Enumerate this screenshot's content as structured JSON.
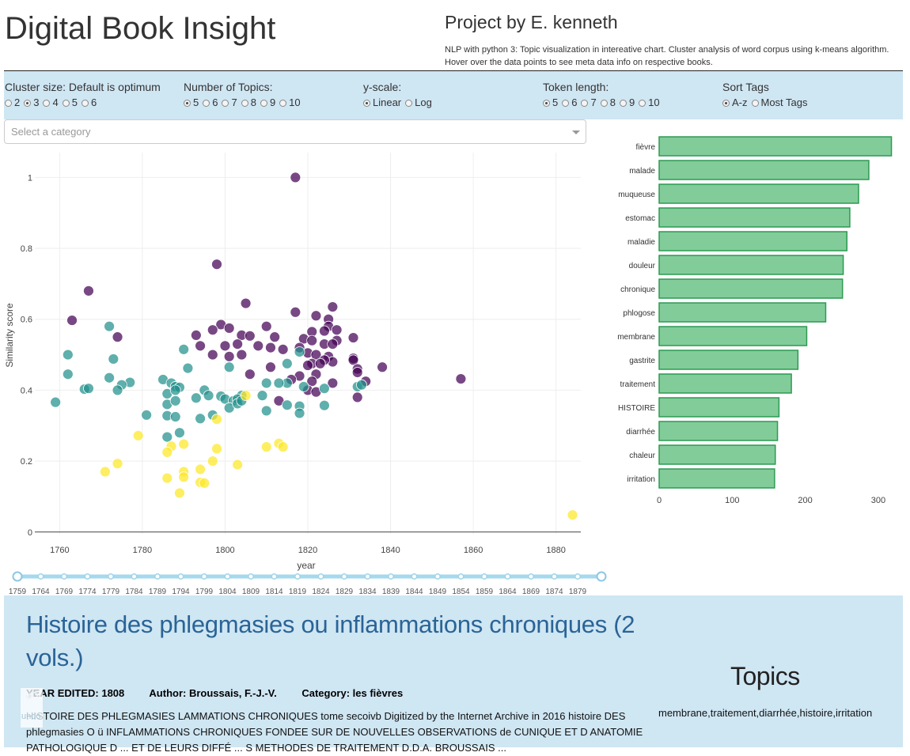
{
  "header": {
    "title": "Digital Book Insight",
    "project_by": "Project by E. kenneth",
    "description": "NLP with python 3: Topic visualization in intereative chart. Cluster analysis of word corpus using k-means algorithm. Hover over the data points to see meta data info on respective books."
  },
  "controls": {
    "cluster": {
      "label": "Cluster size: Default is optimum",
      "options": [
        "2",
        "3",
        "4",
        "5",
        "6"
      ],
      "selected": "3"
    },
    "topics": {
      "label": "Number of Topics:",
      "options": [
        "5",
        "6",
        "7",
        "8",
        "9",
        "10"
      ],
      "selected": "5"
    },
    "yscale": {
      "label": "y-scale:",
      "options": [
        "Linear",
        "Log"
      ],
      "selected": "Linear"
    },
    "token": {
      "label": "Token length:",
      "options": [
        "5",
        "6",
        "7",
        "8",
        "9",
        "10"
      ],
      "selected": "5"
    },
    "sort": {
      "label": "Sort Tags",
      "options": [
        "A-z",
        "Most Tags"
      ],
      "selected": "A-z"
    }
  },
  "category_select": {
    "placeholder": "Select a category"
  },
  "scatter": {
    "xlabel": "year",
    "ylabel": "Similarity score",
    "xlim": [
      1754,
      1886
    ],
    "ylim": [
      -0.005,
      1.07
    ],
    "xticks": [
      1760,
      1780,
      1800,
      1820,
      1840,
      1860,
      1880
    ],
    "yticks": [
      0,
      0.2,
      0.4,
      0.6,
      0.8,
      1
    ],
    "ytick_labels": [
      "0",
      "0.2",
      "0.4",
      "0.6",
      "0.8",
      "1"
    ],
    "cluster_colors": [
      "#440154",
      "#21908c",
      "#fde725"
    ],
    "points": [
      [
        1817,
        1.0,
        0
      ],
      [
        1798,
        0.755,
        0
      ],
      [
        1767,
        0.68,
        0
      ],
      [
        1805,
        0.645,
        0
      ],
      [
        1826,
        0.635,
        0
      ],
      [
        1763,
        0.597,
        0
      ],
      [
        1817,
        0.62,
        0
      ],
      [
        1822,
        0.61,
        0
      ],
      [
        1825,
        0.6,
        0
      ],
      [
        1799,
        0.585,
        0
      ],
      [
        1797,
        0.57,
        0
      ],
      [
        1801,
        0.575,
        0
      ],
      [
        1810,
        0.58,
        0
      ],
      [
        1825,
        0.58,
        0
      ],
      [
        1827,
        0.57,
        0
      ],
      [
        1821,
        0.565,
        0
      ],
      [
        1824,
        0.567,
        0
      ],
      [
        1793,
        0.555,
        0
      ],
      [
        1774,
        0.55,
        0
      ],
      [
        1804,
        0.555,
        0
      ],
      [
        1806,
        0.553,
        0
      ],
      [
        1812,
        0.55,
        0
      ],
      [
        1819,
        0.545,
        0
      ],
      [
        1821,
        0.54,
        0
      ],
      [
        1827,
        0.54,
        0
      ],
      [
        1831,
        0.548,
        0
      ],
      [
        1794,
        0.525,
        0
      ],
      [
        1800,
        0.525,
        0
      ],
      [
        1803,
        0.53,
        0
      ],
      [
        1808,
        0.525,
        0
      ],
      [
        1811,
        0.52,
        0
      ],
      [
        1814,
        0.515,
        0
      ],
      [
        1818,
        0.52,
        0
      ],
      [
        1824,
        0.53,
        0
      ],
      [
        1826,
        0.53,
        0
      ],
      [
        1797,
        0.5,
        0
      ],
      [
        1804,
        0.5,
        0
      ],
      [
        1801,
        0.495,
        0
      ],
      [
        1820,
        0.505,
        0
      ],
      [
        1822,
        0.5,
        0
      ],
      [
        1825,
        0.495,
        0
      ],
      [
        1831,
        0.49,
        0
      ],
      [
        1831,
        0.485,
        0
      ],
      [
        1826,
        0.48,
        0
      ],
      [
        1824,
        0.485,
        0
      ],
      [
        1821,
        0.475,
        0
      ],
      [
        1820,
        0.47,
        0
      ],
      [
        1823,
        0.475,
        0
      ],
      [
        1811,
        0.465,
        0
      ],
      [
        1832,
        0.46,
        0
      ],
      [
        1838,
        0.465,
        0
      ],
      [
        1832,
        0.45,
        0
      ],
      [
        1822,
        0.445,
        0
      ],
      [
        1818,
        0.44,
        0
      ],
      [
        1816,
        0.43,
        0
      ],
      [
        1821,
        0.425,
        0
      ],
      [
        1826,
        0.42,
        0
      ],
      [
        1834,
        0.425,
        0
      ],
      [
        1820,
        0.4,
        0
      ],
      [
        1822,
        0.395,
        0
      ],
      [
        1832,
        0.38,
        0
      ],
      [
        1857,
        0.432,
        0
      ],
      [
        1813,
        0.37,
        0
      ],
      [
        1806,
        0.445,
        0
      ],
      [
        1772,
        0.58,
        1
      ],
      [
        1790,
        0.515,
        1
      ],
      [
        1762,
        0.5,
        1
      ],
      [
        1773,
        0.488,
        1
      ],
      [
        1791,
        0.462,
        1
      ],
      [
        1801,
        0.465,
        1
      ],
      [
        1815,
        0.475,
        1
      ],
      [
        1818,
        0.508,
        1
      ],
      [
        1762,
        0.445,
        1
      ],
      [
        1772,
        0.435,
        1
      ],
      [
        1777,
        0.422,
        1
      ],
      [
        1785,
        0.43,
        1
      ],
      [
        1787,
        0.42,
        1
      ],
      [
        1788,
        0.41,
        1
      ],
      [
        1789,
        0.408,
        1
      ],
      [
        1775,
        0.415,
        1
      ],
      [
        1774,
        0.4,
        1
      ],
      [
        1766,
        0.403,
        1
      ],
      [
        1767,
        0.405,
        1
      ],
      [
        1786,
        0.39,
        1
      ],
      [
        1788,
        0.4,
        1
      ],
      [
        1795,
        0.4,
        1
      ],
      [
        1799,
        0.383,
        1
      ],
      [
        1804,
        0.385,
        1
      ],
      [
        1809,
        0.385,
        1
      ],
      [
        1810,
        0.42,
        1
      ],
      [
        1815,
        0.42,
        1
      ],
      [
        1819,
        0.41,
        1
      ],
      [
        1824,
        0.405,
        1
      ],
      [
        1832,
        0.41,
        1
      ],
      [
        1833,
        0.415,
        1
      ],
      [
        1786,
        0.36,
        1
      ],
      [
        1788,
        0.37,
        1
      ],
      [
        1800,
        0.375,
        1
      ],
      [
        1802,
        0.37,
        1
      ],
      [
        1803,
        0.375,
        1
      ],
      [
        1801,
        0.35,
        1
      ],
      [
        1803,
        0.362,
        1
      ],
      [
        1804,
        0.37,
        1
      ],
      [
        1815,
        0.358,
        1
      ],
      [
        1818,
        0.355,
        1
      ],
      [
        1824,
        0.357,
        1
      ],
      [
        1759,
        0.366,
        1
      ],
      [
        1781,
        0.33,
        1
      ],
      [
        1786,
        0.328,
        1
      ],
      [
        1788,
        0.325,
        1
      ],
      [
        1794,
        0.32,
        1
      ],
      [
        1797,
        0.33,
        1
      ],
      [
        1810,
        0.342,
        1
      ],
      [
        1818,
        0.335,
        1
      ],
      [
        1789,
        0.28,
        1
      ],
      [
        1786,
        0.268,
        1
      ],
      [
        1813,
        0.42,
        1
      ],
      [
        1793,
        0.378,
        1
      ],
      [
        1796,
        0.385,
        1
      ],
      [
        1805,
        0.385,
        2
      ],
      [
        1798,
        0.318,
        2
      ],
      [
        1779,
        0.272,
        2
      ],
      [
        1790,
        0.248,
        2
      ],
      [
        1787,
        0.242,
        2
      ],
      [
        1786,
        0.225,
        2
      ],
      [
        1798,
        0.235,
        2
      ],
      [
        1813,
        0.25,
        2
      ],
      [
        1814,
        0.24,
        2
      ],
      [
        1810,
        0.24,
        2
      ],
      [
        1774,
        0.193,
        2
      ],
      [
        1771,
        0.17,
        2
      ],
      [
        1790,
        0.17,
        2
      ],
      [
        1790,
        0.155,
        2
      ],
      [
        1794,
        0.177,
        2
      ],
      [
        1797,
        0.2,
        2
      ],
      [
        1803,
        0.19,
        2
      ],
      [
        1786,
        0.152,
        2
      ],
      [
        1794,
        0.14,
        2
      ],
      [
        1795,
        0.138,
        2
      ],
      [
        1789,
        0.11,
        2
      ],
      [
        1884,
        0.048,
        2
      ]
    ]
  },
  "chart_data": {
    "type": "bar",
    "orientation": "horizontal",
    "categories": [
      "fièvre",
      "malade",
      "muqueuse",
      "estomac",
      "maladie",
      "douleur",
      "chronique",
      "phlogose",
      "membrane",
      "gastrite",
      "traitement",
      "HISTOIRE",
      "diarrhée",
      "chaleur",
      "irritation"
    ],
    "values": [
      318,
      287,
      273,
      261,
      257,
      252,
      251,
      228,
      202,
      190,
      181,
      164,
      162,
      159,
      158
    ],
    "xticks": [
      0,
      100,
      200,
      300
    ],
    "xlim": [
      0,
      325
    ],
    "bar_color": "#82cc9a",
    "bar_border": "#2d9a52"
  },
  "slider": {
    "marks": [
      "1759",
      "1764",
      "1769",
      "1774",
      "1779",
      "1784",
      "1789",
      "1794",
      "1799",
      "1804",
      "1809",
      "1814",
      "1819",
      "1824",
      "1829",
      "1834",
      "1839",
      "1844",
      "1849",
      "1854",
      "1859",
      "1864",
      "1869",
      "1874",
      "1879"
    ]
  },
  "detail": {
    "title": "Histoire des phlegmasies ou inflammations chroniques (2 vols.)",
    "year_edited": "YEAR EDITED: 1808",
    "author": "Author: Broussais, F.-J.-V.",
    "category": "Category: les fièvres",
    "text": "HISTOIRE DES PHLEGMASIES LAMMATIONS CHRONIQUES tome secoivb Digitized by the Internet Archive in 2016 histoire DES phlegmasies O ü INFLAMMATIONS CHRONIQUES FONDEE SUR DE NOUVELLES OBSERVATIONS de CUNIQUE ET D ANATOMIE PATHOLOGIQUE D ... ET DE LEURS DIFFÉ ... S METHODES DE TRAITEMENT D.D.A. BROUSSAIS ...",
    "topics_heading": "Topics",
    "topics": "membrane,traitement,diarrhée,histoire,irritation",
    "undo_glyph": "↶",
    "undo_label": "undo"
  }
}
